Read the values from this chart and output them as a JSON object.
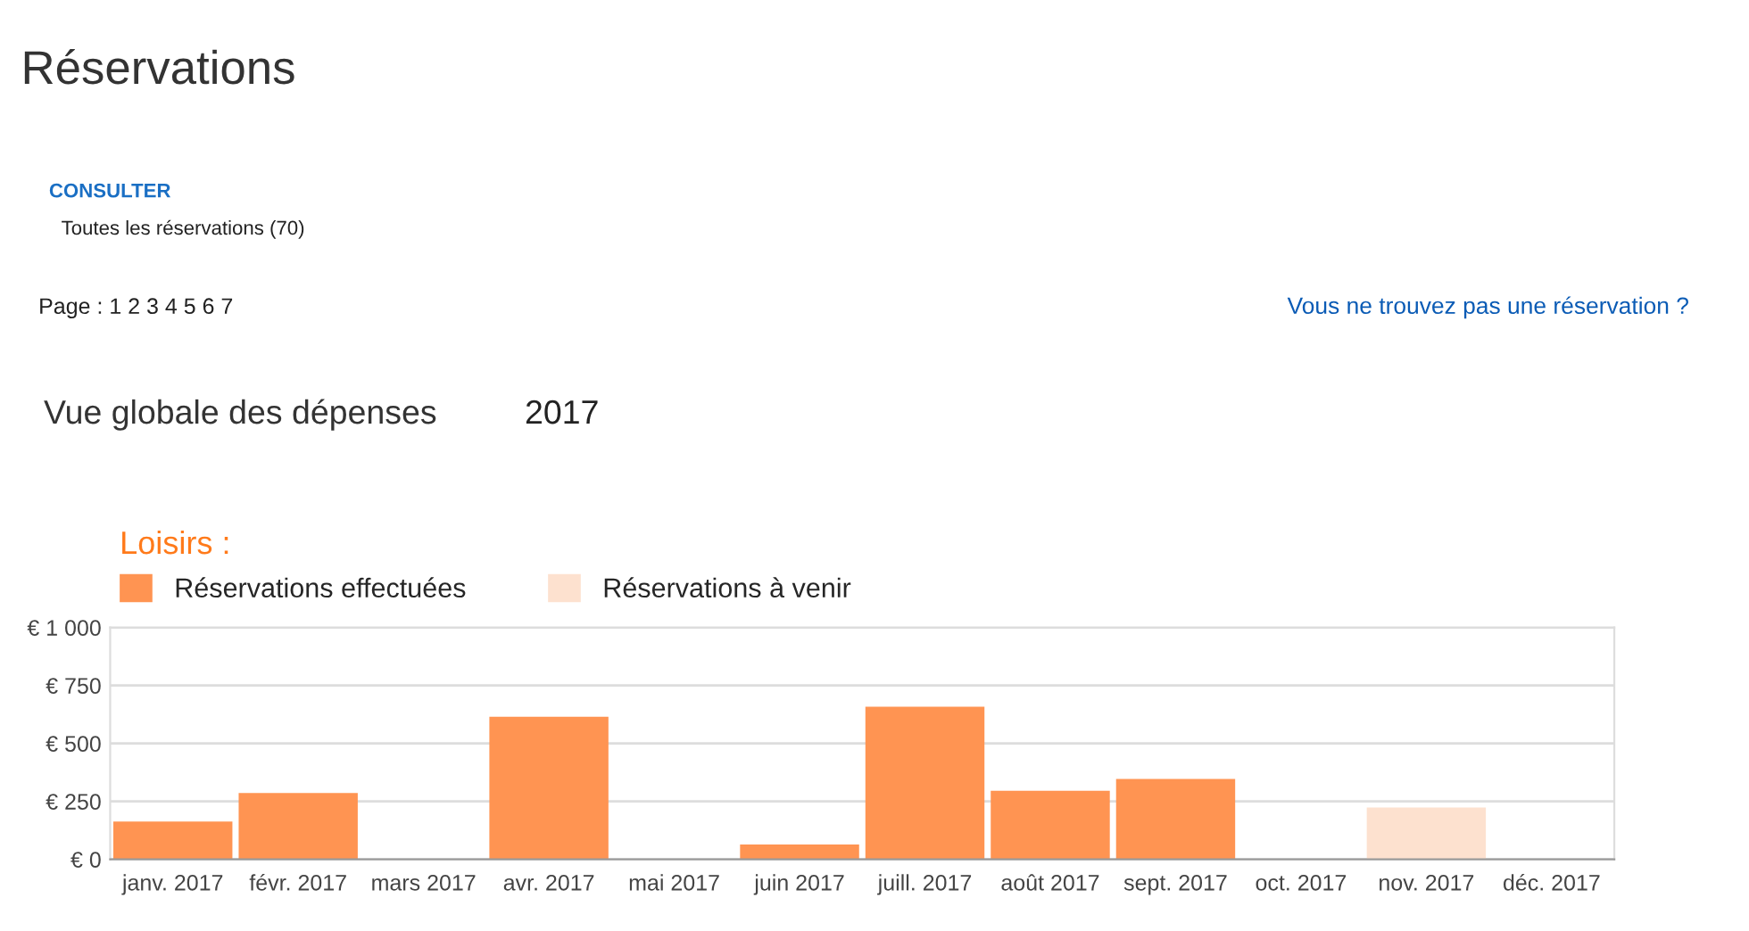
{
  "chart_data": {
    "type": "bar",
    "title": "Réservations",
    "legend_title": "Loisirs :",
    "annotations": [
      "CONSULTER",
      "Toutes les réservations (70)",
      "Page : 1 2 3 4 5 6 7",
      "Vous ne trouvez pas une réservation ?",
      "Vue globale des dépenses",
      "2017"
    ],
    "categories": [
      "janv. 2017",
      "févr. 2017",
      "mars 2017",
      "avr. 2017",
      "mai 2017",
      "juin 2017",
      "juill. 2017",
      "août 2017",
      "sept. 2017",
      "oct. 2017",
      "nov. 2017",
      "déc. 2017"
    ],
    "series": [
      {
        "name": "Réservations effectuées",
        "color": "#ff9452",
        "values": [
          163,
          286,
          null,
          615,
          null,
          64,
          658,
          296,
          347,
          null,
          null,
          null
        ]
      },
      {
        "name": "Réservations à venir",
        "color": "#fde1cf",
        "values": [
          null,
          null,
          null,
          null,
          null,
          null,
          null,
          null,
          null,
          null,
          224,
          null
        ]
      }
    ],
    "ylim": [
      0,
      1000
    ],
    "yticks": [
      {
        "value": 0,
        "label": "€ 0"
      },
      {
        "value": 250,
        "label": "€ 250"
      },
      {
        "value": 500,
        "label": "€ 500"
      },
      {
        "value": 750,
        "label": "€ 750"
      },
      {
        "value": 1000,
        "label": "€ 1 000"
      }
    ],
    "grid": "y",
    "legend": "top left"
  }
}
